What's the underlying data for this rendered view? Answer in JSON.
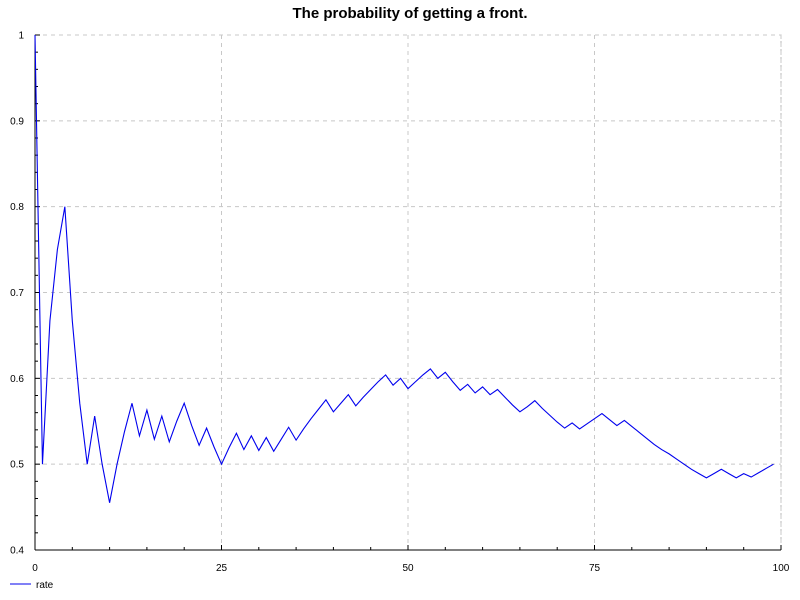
{
  "chart_data": {
    "type": "line",
    "title": "The probability of getting a front.",
    "xlabel": "",
    "ylabel": "",
    "xlim": [
      0,
      100
    ],
    "ylim": [
      0.4,
      1.0
    ],
    "x_ticks": [
      0,
      25,
      50,
      75,
      100
    ],
    "y_ticks": [
      0.4,
      0.5,
      0.6,
      0.7,
      0.8,
      0.9,
      1.0
    ],
    "x_tick_labels": [
      "0",
      "25",
      "50",
      "75",
      "100"
    ],
    "y_tick_labels": [
      "0.4",
      "0.5",
      "0.6",
      "0.7",
      "0.8",
      "0.9",
      "1"
    ],
    "grid": true,
    "legend_position": "bottom-left",
    "colors": {
      "line": "#0000ee",
      "grid": "#c8c8c8",
      "axis": "#000000"
    },
    "series": [
      {
        "name": "rate",
        "x": [
          0,
          1,
          2,
          3,
          4,
          5,
          6,
          7,
          8,
          9,
          10,
          11,
          12,
          13,
          14,
          15,
          16,
          17,
          18,
          19,
          20,
          21,
          22,
          23,
          24,
          25,
          26,
          27,
          28,
          29,
          30,
          31,
          32,
          33,
          34,
          35,
          36,
          37,
          38,
          39,
          40,
          41,
          42,
          43,
          44,
          45,
          46,
          47,
          48,
          49,
          50,
          51,
          52,
          53,
          54,
          55,
          56,
          57,
          58,
          59,
          60,
          61,
          62,
          63,
          64,
          65,
          66,
          67,
          68,
          69,
          70,
          71,
          72,
          73,
          74,
          75,
          76,
          77,
          78,
          79,
          80,
          81,
          82,
          83,
          84,
          85,
          86,
          87,
          88,
          89,
          90,
          91,
          92,
          93,
          94,
          95,
          96,
          97,
          98,
          99
        ],
        "values": [
          1.0,
          0.5,
          0.667,
          0.75,
          0.8,
          0.667,
          0.571,
          0.5,
          0.556,
          0.5,
          0.455,
          0.5,
          0.538,
          0.571,
          0.533,
          0.563,
          0.529,
          0.556,
          0.526,
          0.55,
          0.571,
          0.545,
          0.522,
          0.542,
          0.52,
          0.5,
          0.519,
          0.536,
          0.517,
          0.533,
          0.516,
          0.531,
          0.515,
          0.529,
          0.543,
          0.528,
          0.541,
          0.553,
          0.564,
          0.575,
          0.561,
          0.571,
          0.581,
          0.568,
          0.578,
          0.587,
          0.596,
          0.604,
          0.592,
          0.6,
          0.588,
          0.596,
          0.604,
          0.611,
          0.6,
          0.607,
          0.596,
          0.586,
          0.593,
          0.583,
          0.59,
          0.581,
          0.587,
          0.578,
          0.569,
          0.561,
          0.567,
          0.574,
          0.565,
          0.557,
          0.549,
          0.542,
          0.548,
          0.541,
          0.547,
          0.553,
          0.559,
          0.552,
          0.545,
          0.551,
          0.544,
          0.537,
          0.53,
          0.523,
          0.517,
          0.512,
          0.506,
          0.5,
          0.494,
          0.489,
          0.484,
          0.489,
          0.494,
          0.489,
          0.484,
          0.489,
          0.485,
          0.49,
          0.495,
          0.5
        ]
      }
    ]
  }
}
